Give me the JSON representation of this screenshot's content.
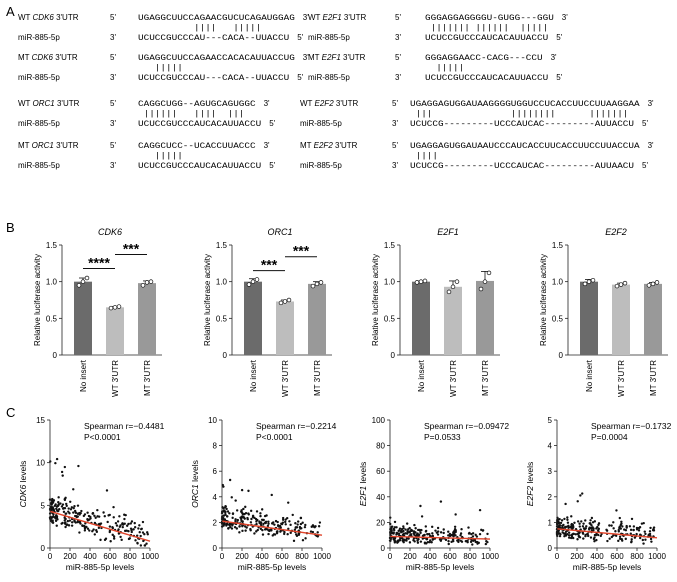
{
  "panels": {
    "a": "A",
    "b": "B",
    "c": "C"
  },
  "alignments": [
    {
      "id": "cdk6",
      "gene": "CDK6",
      "top_pre": "WT",
      "top_post": "3'UTR",
      "top_seq": "UGAGGCUUCCAGAACGUCUCAGAUGGAG",
      "bars": "          ||||   |||||",
      "bot_label": "miR-885-5p",
      "bot_seq": "UCUCCGUCCCAU---CACA--UUACCU"
    },
    {
      "id": "e2f1",
      "gene": "E2F1",
      "top_pre": "WT",
      "top_post": "3'UTR",
      "top_seq": "GGGAGGAGGGGU-GUGG---GGU",
      "bars": " ||||||| ||||||  |||||",
      "bot_label": "miR-885-5p",
      "bot_seq": "UCUCCGUCCCAUCACAUUACCU"
    },
    {
      "id": "cdk6mt",
      "gene": "CDK6",
      "top_pre": "MT",
      "top_post": "3'UTR",
      "top_seq": "UGAGGCUUCCAGAACCACACAUUACCUG",
      "bars": "   |||||",
      "bot_label": "miR-885-5p",
      "bot_seq": "UCUCCGUCCCAU---CACA--UUACCU"
    },
    {
      "id": "e2f1mt",
      "gene": "E2F1",
      "top_pre": "MT",
      "top_post": "3'UTR",
      "top_seq": "GGGAGGAACC-CACG---CCU",
      "bars": "  |||||",
      "bot_label": "miR-885-5p",
      "bot_seq": "UCUCCGUCCCAUCACAUUACCU"
    },
    {
      "id": "orc1",
      "gene": "ORC1",
      "top_pre": "WT",
      "top_post": "3'UTR",
      "top_seq": "CAGGCUGG--AGUGCAGUGGC",
      "bars": " ||||||   ||||  |||",
      "bot_label": "miR-885-5p",
      "bot_seq": "UCUCCGUCCCAUCACAUUACCU"
    },
    {
      "id": "e2f2",
      "gene": "E2F2",
      "top_pre": "WT",
      "top_post": "3'UTR",
      "top_seq": "UGAGGAGUGGAUAAGGGGUGGUCCUCACCUUCCUUAAGGAA",
      "bars": " |||              ||||||||      |||||||",
      "bot_label": "miR-885-5p",
      "bot_seq": "UCUCCG---------UCCCAUCAC---------AUUACCU"
    },
    {
      "id": "orc1mt",
      "gene": "ORC1",
      "top_pre": "MT",
      "top_post": "3'UTR",
      "top_seq": "CAGGCUCC--UCACCUUACCC",
      "bars": "   |||||",
      "bot_label": "miR-885-5p",
      "bot_seq": "UCUCCGUCCCAUCACAUUACCU"
    },
    {
      "id": "e2f2mt",
      "gene": "E2F2",
      "top_pre": "MT",
      "top_post": "3'UTR",
      "top_seq": "UGAGGAGUGGAUAAUCCCAUCACCUUCACCUUCCUUACCUA",
      "bars": " ||||",
      "bot_label": "miR-885-5p",
      "bot_seq": "UCUCCG---------UCCCAUCAC---------AUUAACU"
    }
  ],
  "strand": {
    "five": "5'",
    "three": "3'"
  },
  "chart_data": [
    {
      "type": "bar",
      "title": "CDK6",
      "ylabel": "Relative luciferase activity",
      "categories": [
        "No insert",
        "WT 3'UTR",
        "MT 3'UTR"
      ],
      "values": [
        1.0,
        0.65,
        0.98
      ],
      "errors": [
        0.05,
        0.01,
        0.03
      ],
      "points": [
        [
          0.95,
          1.0,
          1.05
        ],
        [
          0.64,
          0.65,
          0.66
        ],
        [
          0.95,
          0.99,
          1.0
        ]
      ],
      "ylim": [
        0,
        1.5
      ],
      "yticks": [
        "0",
        "0.5",
        "1.0",
        "1.5"
      ],
      "sig": [
        {
          "from": 0,
          "to": 1,
          "label": "****",
          "y": 1.18
        },
        {
          "from": 1,
          "to": 2,
          "label": "***",
          "y": 1.37
        }
      ],
      "colors": [
        "#6b6b6b",
        "#bdbdbd",
        "#999999"
      ]
    },
    {
      "type": "bar",
      "title": "ORC1",
      "ylabel": "Relative luciferase activity",
      "categories": [
        "No insert",
        "WT 3'UTR",
        "MT 3'UTR"
      ],
      "values": [
        1.0,
        0.73,
        0.97
      ],
      "errors": [
        0.04,
        0.02,
        0.03
      ],
      "points": [
        [
          0.96,
          1.0,
          1.03
        ],
        [
          0.71,
          0.73,
          0.75
        ],
        [
          0.94,
          0.97,
          0.99
        ]
      ],
      "ylim": [
        0,
        1.5
      ],
      "yticks": [
        "0",
        "0.5",
        "1.0",
        "1.5"
      ],
      "sig": [
        {
          "from": 0,
          "to": 1,
          "label": "***",
          "y": 1.15
        },
        {
          "from": 1,
          "to": 2,
          "label": "***",
          "y": 1.34
        }
      ],
      "colors": [
        "#6b6b6b",
        "#bdbdbd",
        "#999999"
      ]
    },
    {
      "type": "bar",
      "title": "E2F1",
      "ylabel": "Relative luciferase activity",
      "categories": [
        "No insert",
        "WT 3'UTR",
        "MT 3'UTR"
      ],
      "values": [
        1.0,
        0.93,
        1.01
      ],
      "errors": [
        0.01,
        0.08,
        0.13
      ],
      "points": [
        [
          0.99,
          1.0,
          1.01
        ],
        [
          0.86,
          0.93,
          1.0
        ],
        [
          0.9,
          1.0,
          1.12
        ]
      ],
      "ylim": [
        0,
        1.5
      ],
      "yticks": [
        "0",
        "0.5",
        "1.0",
        "1.5"
      ],
      "sig": [],
      "colors": [
        "#6b6b6b",
        "#bdbdbd",
        "#999999"
      ]
    },
    {
      "type": "bar",
      "title": "E2F2",
      "ylabel": "Relative luciferase activity",
      "categories": [
        "No insert",
        "WT 3'UTR",
        "MT 3'UTR"
      ],
      "values": [
        1.0,
        0.96,
        0.97
      ],
      "errors": [
        0.03,
        0.02,
        0.02
      ],
      "points": [
        [
          0.97,
          1.0,
          1.02
        ],
        [
          0.94,
          0.96,
          0.98
        ],
        [
          0.95,
          0.97,
          0.99
        ]
      ],
      "ylim": [
        0,
        1.5
      ],
      "yticks": [
        "0",
        "0.5",
        "1.0",
        "1.5"
      ],
      "sig": [],
      "colors": [
        "#6b6b6b",
        "#bdbdbd",
        "#999999"
      ]
    },
    {
      "type": "scatter",
      "gene": "CDK6",
      "ylabel_suffix": " levels",
      "xlabel": "miR-885-5p levels",
      "xlim": [
        0,
        1000
      ],
      "ylim": [
        0,
        15
      ],
      "xticks": [
        0,
        200,
        400,
        600,
        800,
        1000
      ],
      "yticks": [
        0,
        5,
        10,
        15
      ],
      "stat1": "Spearman r=−0.4481",
      "stat2": "P<0.0001",
      "trend": [
        [
          0,
          4.3
        ],
        [
          1000,
          0.8
        ]
      ],
      "seed": 11,
      "ymax_sample": 12.8,
      "ybase": 4.0,
      "slope": -3.3,
      "spread": 2.6
    },
    {
      "type": "scatter",
      "gene": "ORC1",
      "ylabel_suffix": " levels",
      "xlabel": "miR-885-5p levels",
      "xlim": [
        0,
        1000
      ],
      "ylim": [
        0,
        10
      ],
      "xticks": [
        0,
        200,
        400,
        600,
        800,
        1000
      ],
      "yticks": [
        0,
        2,
        4,
        6,
        8,
        10
      ],
      "stat1": "Spearman r=−0.2214",
      "stat2": "P<0.0001",
      "trend": [
        [
          0,
          2.1
        ],
        [
          1000,
          1.0
        ]
      ],
      "seed": 23,
      "ymax_sample": 8.7,
      "ybase": 2.0,
      "slope": -1.0,
      "spread": 1.5
    },
    {
      "type": "scatter",
      "gene": "E2F1",
      "ylabel_suffix": " levels",
      "xlabel": "miR-885-5p levels",
      "xlim": [
        0,
        1000
      ],
      "ylim": [
        0,
        100
      ],
      "xticks": [
        0,
        200,
        400,
        600,
        800,
        1000
      ],
      "yticks": [
        0,
        20,
        40,
        60,
        80,
        100
      ],
      "stat1": "Spearman r=−0.09472",
      "stat2": "P=0.0533",
      "trend": [
        [
          0,
          9
        ],
        [
          1000,
          7
        ]
      ],
      "seed": 37,
      "ymax_sample": 48,
      "ybase": 8.0,
      "slope": -1.5,
      "spread": 10
    },
    {
      "type": "scatter",
      "gene": "E2F2",
      "ylabel_suffix": " levels",
      "xlabel": "miR-885-5p levels",
      "xlim": [
        0,
        1000
      ],
      "ylim": [
        0,
        5
      ],
      "xticks": [
        0,
        200,
        400,
        600,
        800,
        1000
      ],
      "yticks": [
        0,
        1,
        2,
        3,
        4,
        5
      ],
      "stat1": "Spearman r=−0.1732",
      "stat2": "P=0.0004",
      "trend": [
        [
          0,
          0.75
        ],
        [
          1000,
          0.4
        ]
      ],
      "seed": 53,
      "ymax_sample": 4.1,
      "ybase": 0.7,
      "slope": -0.3,
      "spread": 0.6
    }
  ]
}
